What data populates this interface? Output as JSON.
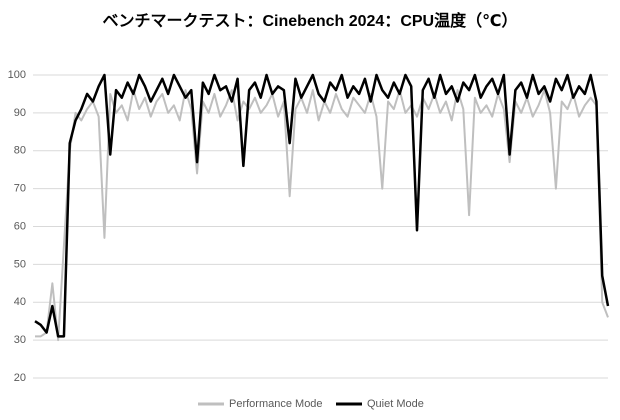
{
  "chart_data": {
    "type": "line",
    "title": "ベンチマークテスト：Cinebench 2024：CPU温度（℃）",
    "ylim": [
      20,
      100
    ],
    "yticks": [
      20,
      30,
      40,
      50,
      60,
      70,
      80,
      90,
      100
    ],
    "grid": true,
    "legend": "bottom",
    "series": [
      {
        "name": "Performance Mode",
        "color": "#bfbfbf",
        "values": [
          31,
          31,
          32,
          45,
          30,
          55,
          80,
          90,
          88,
          91,
          93,
          89,
          57,
          95,
          90,
          92,
          88,
          96,
          91,
          94,
          89,
          93,
          95,
          90,
          92,
          88,
          96,
          91,
          74,
          93,
          90,
          95,
          89,
          92,
          96,
          88,
          93,
          91,
          94,
          90,
          92,
          95,
          89,
          93,
          68,
          91,
          94,
          90,
          96,
          88,
          93,
          90,
          95,
          91,
          89,
          94,
          92,
          90,
          95,
          89,
          70,
          93,
          91,
          96,
          90,
          92,
          89,
          94,
          91,
          95,
          90,
          93,
          88,
          96,
          91,
          63,
          94,
          90,
          92,
          89,
          95,
          91,
          77,
          93,
          90,
          94,
          89,
          92,
          96,
          90,
          70,
          93,
          91,
          95,
          89,
          92,
          94,
          92,
          40,
          36
        ]
      },
      {
        "name": "Quiet Mode",
        "color": "#000000",
        "values": [
          35,
          34,
          32,
          39,
          31,
          31,
          82,
          88,
          91,
          95,
          93,
          97,
          100,
          79,
          96,
          94,
          98,
          95,
          100,
          97,
          93,
          96,
          99,
          95,
          100,
          97,
          94,
          96,
          77,
          98,
          95,
          100,
          96,
          97,
          93,
          99,
          76,
          96,
          98,
          94,
          100,
          95,
          97,
          96,
          82,
          99,
          94,
          97,
          100,
          95,
          93,
          98,
          96,
          100,
          94,
          97,
          95,
          99,
          93,
          100,
          96,
          94,
          98,
          95,
          100,
          97,
          59,
          96,
          99,
          94,
          100,
          95,
          97,
          93,
          98,
          96,
          100,
          94,
          97,
          99,
          95,
          100,
          79,
          96,
          98,
          94,
          100,
          95,
          97,
          93,
          99,
          96,
          100,
          94,
          97,
          95,
          100,
          93,
          47,
          39
        ]
      }
    ]
  }
}
